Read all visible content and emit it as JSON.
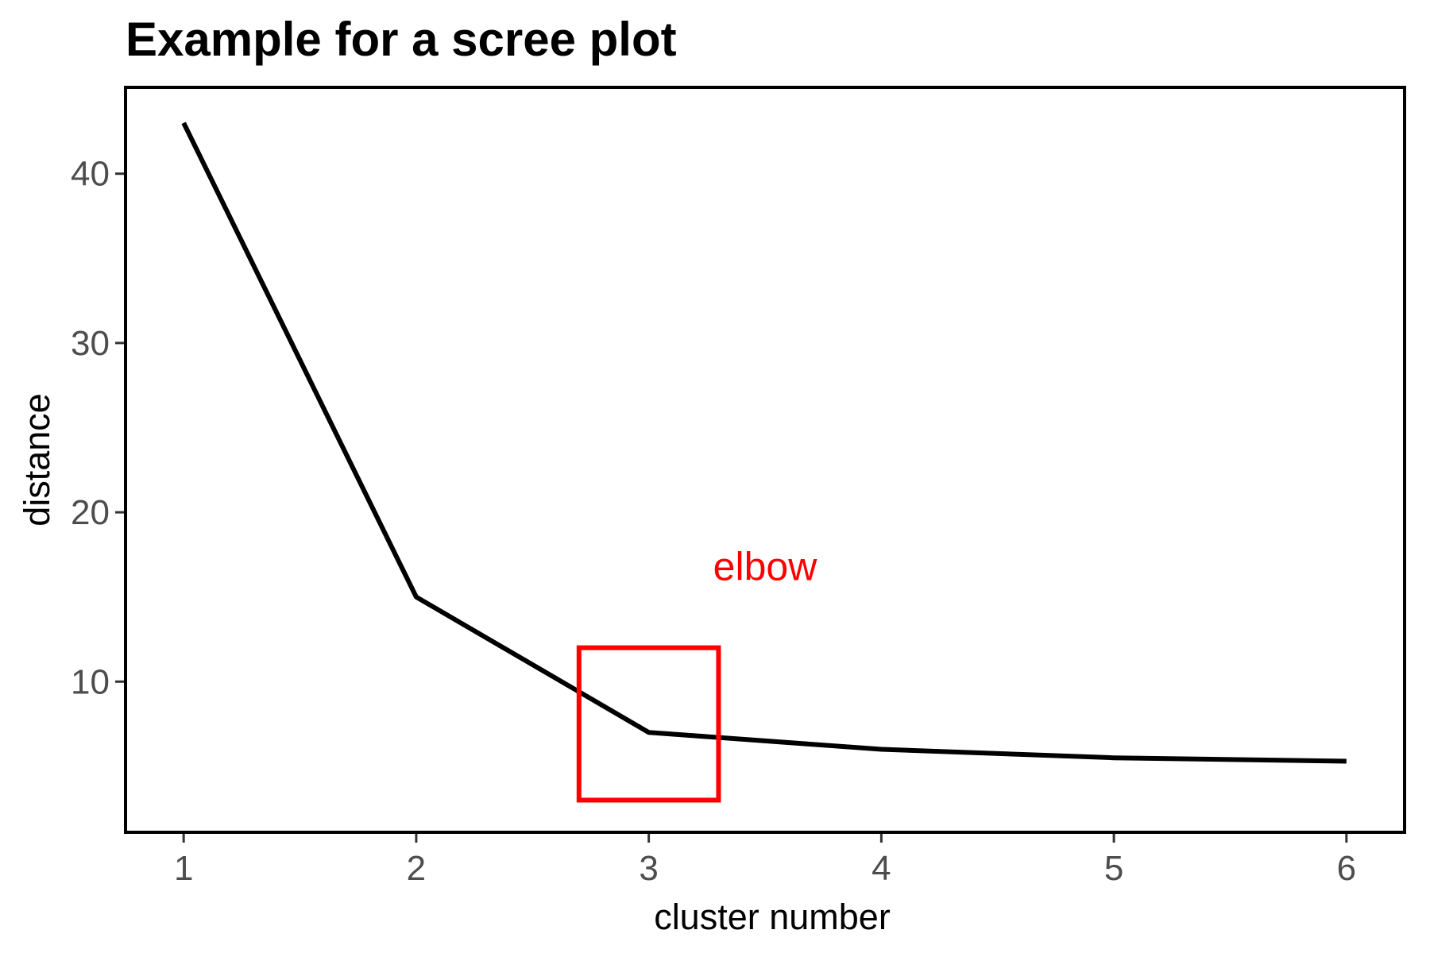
{
  "chart_data": {
    "type": "line",
    "title": "Example for a scree plot",
    "xlabel": "cluster number",
    "ylabel": "distance",
    "x": [
      1,
      2,
      3,
      4,
      5,
      6
    ],
    "series": [
      {
        "values": [
          43,
          15,
          7,
          6,
          5.5,
          5.3
        ]
      }
    ],
    "xlim": [
      0.75,
      6.25
    ],
    "ylim": [
      1.1,
      45.1
    ],
    "x_ticks": [
      "1",
      "2",
      "3",
      "4",
      "5",
      "6"
    ],
    "y_ticks": [
      "10",
      "20",
      "30",
      "40"
    ],
    "x_tick_values": [
      1,
      2,
      3,
      4,
      5,
      6
    ],
    "y_tick_values": [
      10,
      20,
      30,
      40
    ],
    "grid": false,
    "line_color": "#000000",
    "annotations": [
      {
        "type": "rect",
        "x_range": [
          2.7,
          3.3
        ],
        "y_range": [
          3.0,
          12.0
        ],
        "color": "#ff0000"
      },
      {
        "type": "text",
        "text": "elbow",
        "x": 3.5,
        "y": 16,
        "color": "#ff0000"
      }
    ]
  }
}
